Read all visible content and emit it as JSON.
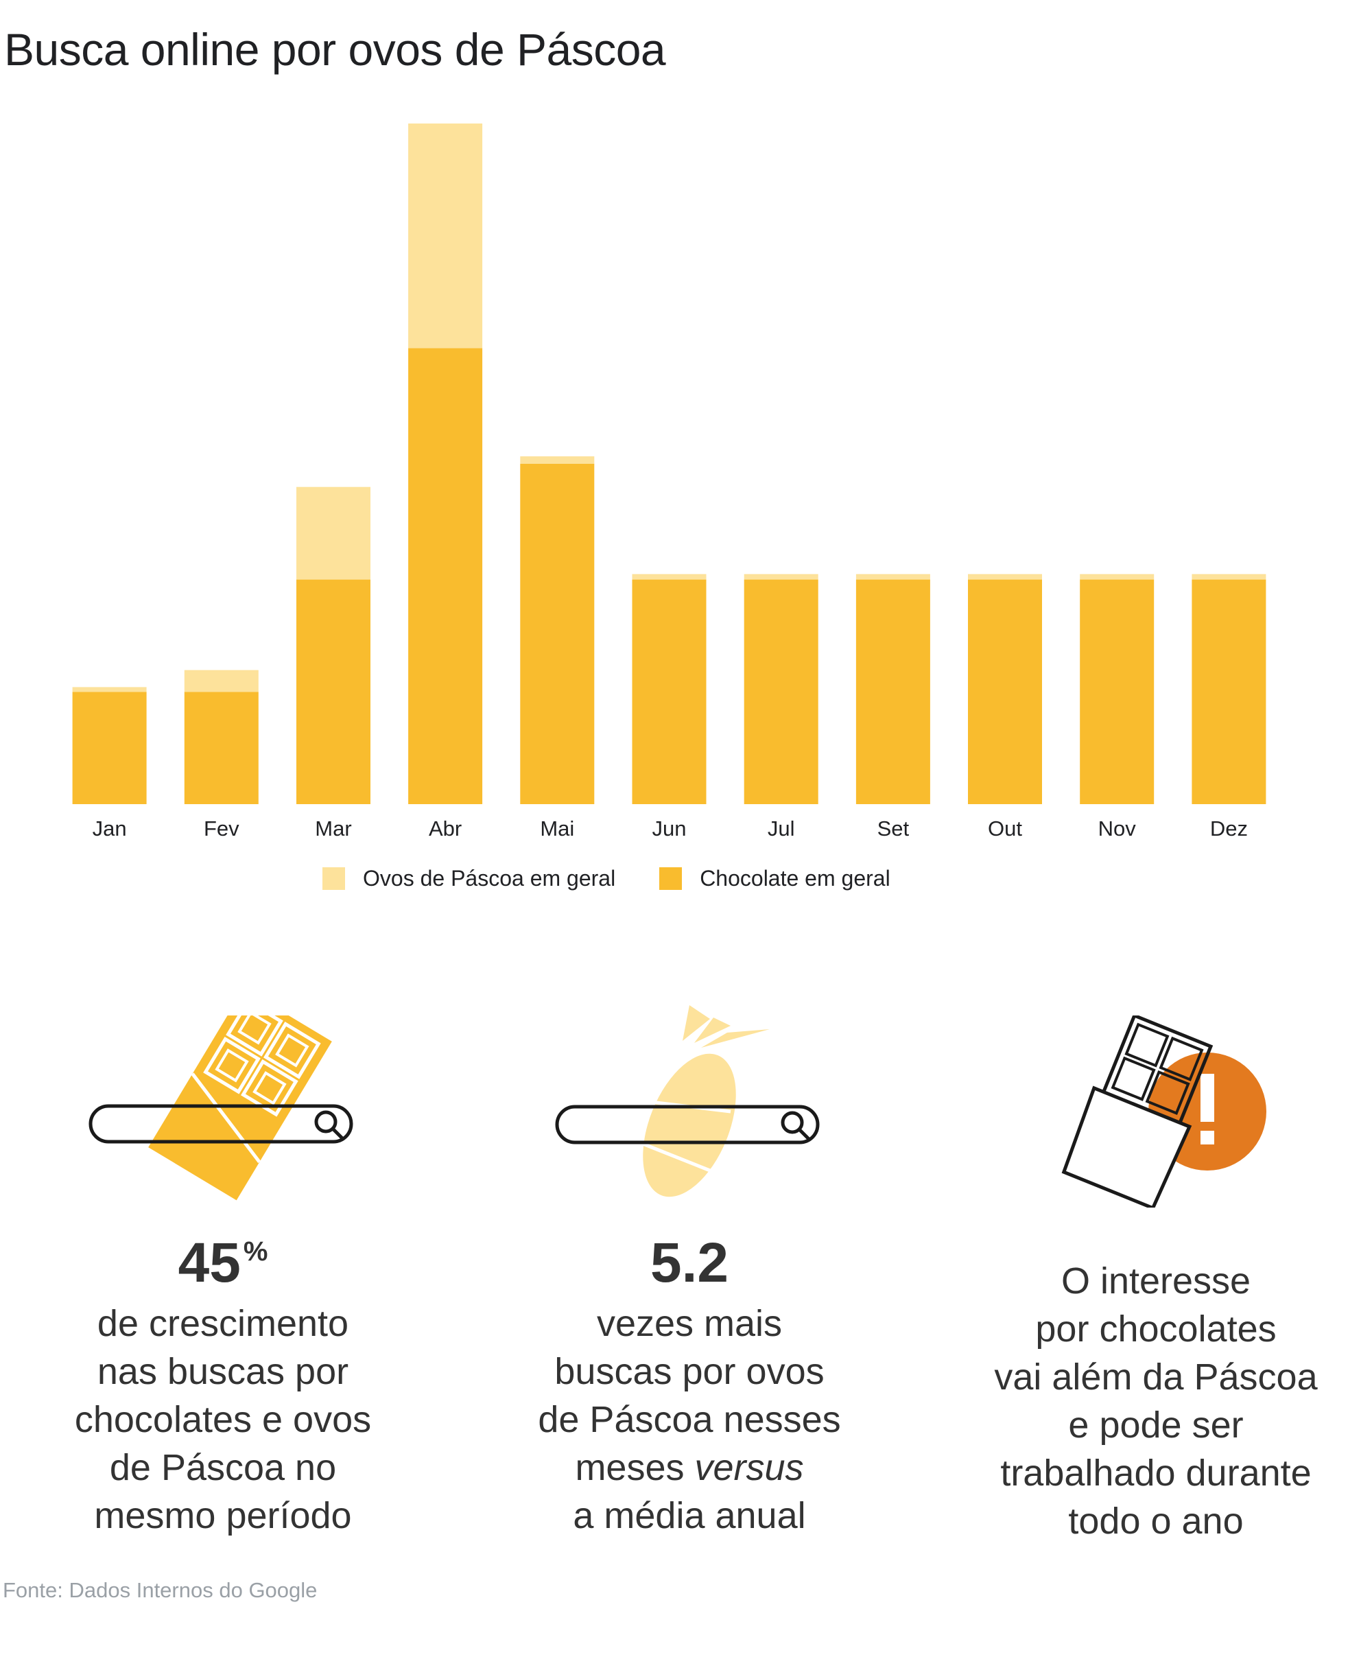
{
  "title": "Busca online por ovos de Páscoa",
  "chart_data": {
    "type": "bar",
    "stacked": true,
    "categories": [
      "Jan",
      "Fev",
      "Mar",
      "Abr",
      "Mai",
      "Jun",
      "Jul",
      "Set",
      "Out",
      "Nov",
      "Dez"
    ],
    "series": [
      {
        "name": "Chocolate em geral",
        "color": "#f9bc2e",
        "values": [
          16.5,
          16.5,
          33,
          67,
          50,
          33,
          33,
          33,
          33,
          33,
          33
        ]
      },
      {
        "name": "Ovos de Páscoa em geral",
        "color": "#fde29b",
        "values": [
          0.7,
          3.2,
          13.6,
          33,
          1.1,
          0.8,
          0.8,
          0.8,
          0.8,
          0.8,
          0.8
        ]
      }
    ],
    "ylim": [
      0,
      100
    ],
    "grid": false,
    "legend_position": "bottom-center"
  },
  "legend": {
    "items": [
      {
        "label": "Ovos de Páscoa em geral",
        "color": "#fde29b"
      },
      {
        "label": "Chocolate em geral",
        "color": "#f9bc2e"
      }
    ]
  },
  "stats": {
    "s1": {
      "value": "45",
      "unit": "%",
      "lines": [
        "de crescimento",
        "nas buscas por",
        "chocolates e ovos",
        "de Páscoa no",
        "mesmo período"
      ]
    },
    "s2": {
      "value": "5.2",
      "l1": "vezes mais",
      "l2": "buscas por ovos",
      "l3": "de Páscoa nesses",
      "l4a": "meses ",
      "l4b": "versus",
      "l5": "a média anual"
    },
    "s3": {
      "lines": [
        "O interesse",
        "por chocolates",
        "vai além da Páscoa",
        "e pode ser",
        "trabalhado durante",
        "todo o ano"
      ]
    }
  },
  "icons": {
    "icon1": "chocolate-bar-search-icon",
    "icon2": "easter-egg-search-icon",
    "icon3": "chocolate-alert-icon"
  },
  "colors": {
    "chocolate": "#f9bc2e",
    "ovos": "#fde29b",
    "alert": "#e37a1f"
  },
  "source": "Fonte: Dados Internos do Google"
}
